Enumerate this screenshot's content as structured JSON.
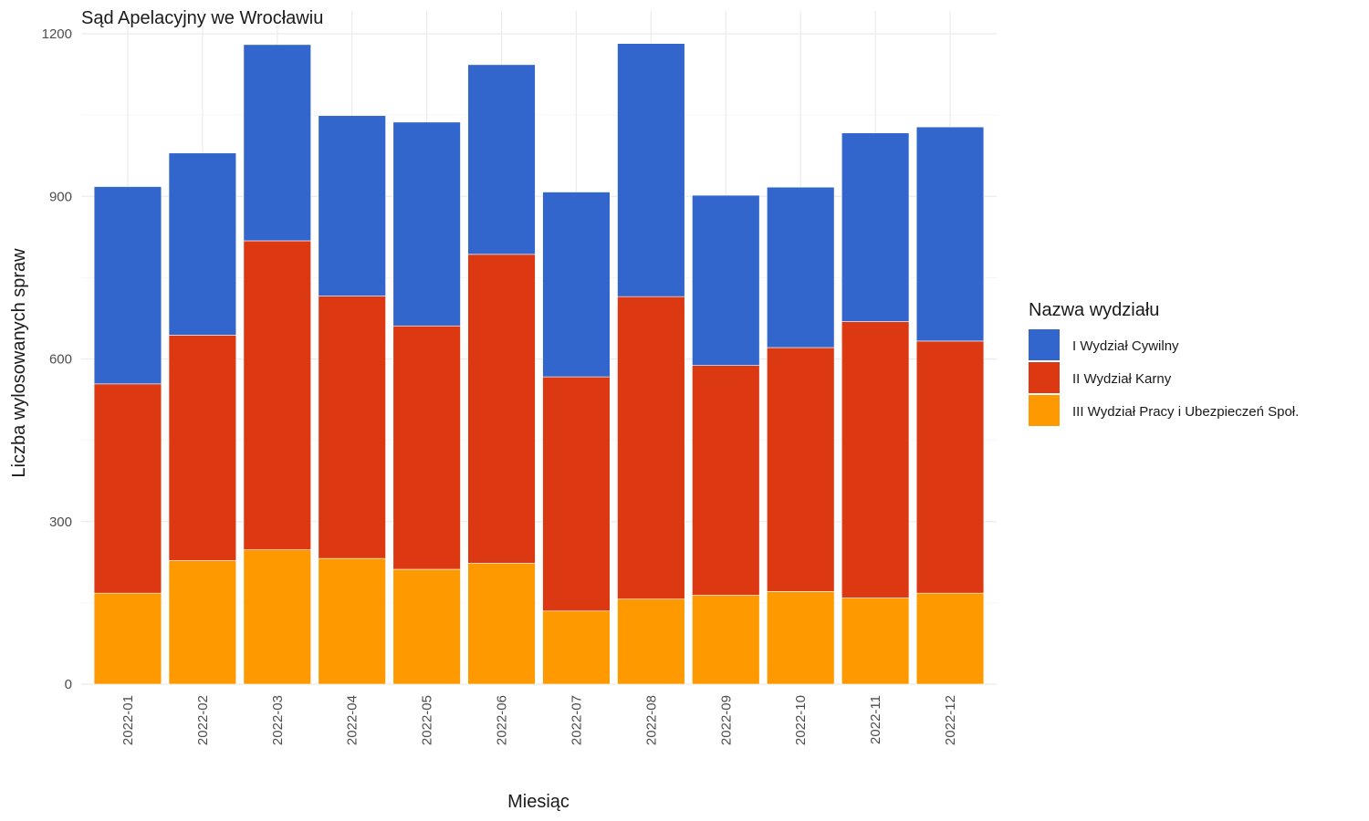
{
  "chart_data": {
    "type": "bar",
    "stacked": true,
    "title": "Sąd Apelacyjny we Wrocławiu",
    "xlabel": "Miesiąc",
    "ylabel": "Liczba wylosowanych spraw",
    "ylim": [
      0,
      1200
    ],
    "yticks": [
      0,
      300,
      600,
      900,
      1200
    ],
    "ytick_labels": [
      "0",
      "300",
      "600",
      "900",
      "1200"
    ],
    "grid": true,
    "legend_position": "right",
    "legend_title": "Nazwa wydziału",
    "categories": [
      "2022-01",
      "2022-02",
      "2022-03",
      "2022-04",
      "2022-05",
      "2022-06",
      "2022-07",
      "2022-08",
      "2022-09",
      "2022-10",
      "2022-11",
      "2022-12"
    ],
    "series": [
      {
        "name": "III Wydział Pracy i Ubezpieczeń Społ.",
        "color": "#FF9900",
        "values": [
          168,
          228,
          248,
          232,
          212,
          223,
          135,
          157,
          164,
          171,
          159,
          168
        ]
      },
      {
        "name": "II Wydział Karny",
        "color": "#DC3912",
        "values": [
          386,
          416,
          570,
          484,
          449,
          570,
          432,
          558,
          424,
          450,
          510,
          465
        ]
      },
      {
        "name": "I Wydział Cywilny",
        "color": "#3366CC",
        "values": [
          364,
          336,
          362,
          333,
          376,
          350,
          341,
          467,
          314,
          296,
          348,
          395
        ]
      }
    ],
    "legend_order": [
      "I Wydział Cywilny",
      "II Wydział Karny",
      "III Wydział Pracy i Ubezpieczeń Społ."
    ]
  }
}
